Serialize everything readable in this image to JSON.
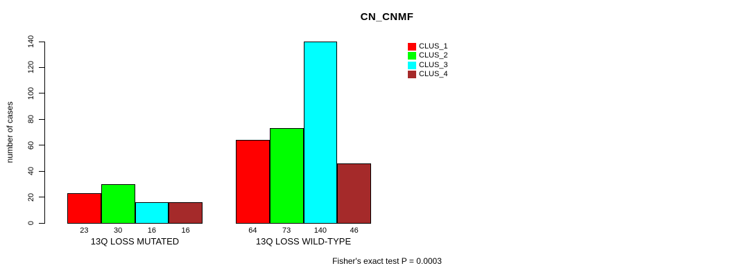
{
  "title": "CN_CNMF",
  "y_axis": {
    "label": "number of cases",
    "ticks": [
      0,
      20,
      40,
      60,
      80,
      100,
      120,
      140
    ]
  },
  "footer": "Fisher's exact test P = 0.0003",
  "chart_data": {
    "type": "bar",
    "categories": [
      "13Q LOSS MUTATED",
      "13Q LOSS WILD-TYPE"
    ],
    "series": [
      {
        "name": "CLUS_1",
        "color": "#ff0000",
        "values": [
          23,
          64
        ]
      },
      {
        "name": "CLUS_2",
        "color": "#00ff00",
        "values": [
          30,
          73
        ]
      },
      {
        "name": "CLUS_3",
        "color": "#00ffff",
        "values": [
          16,
          140
        ]
      },
      {
        "name": "CLUS_4",
        "color": "#a52a2a",
        "values": [
          16,
          46
        ]
      }
    ],
    "title": "CN_CNMF",
    "xlabel": "",
    "ylabel": "number of cases",
    "ylim": [
      0,
      140
    ],
    "grid": false,
    "legend_position": "top-right",
    "bar_value_labels_shown": true,
    "annotation": "Fisher's exact test P = 0.0003"
  }
}
